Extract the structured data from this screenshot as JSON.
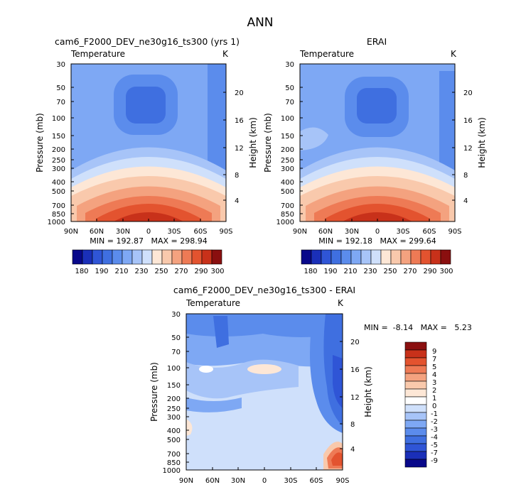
{
  "page_title": "ANN",
  "panels": [
    {
      "title": "cam6_F2000_DEV_ne30g16_ts300 (yrs 1)",
      "field_label": "Temperature",
      "units": "K",
      "ylabel": "Pressure (mb)",
      "ylabel_right": "Height (km)",
      "stats_text": "MIN = 192.87   MAX = 298.94"
    },
    {
      "title": "ERAI",
      "field_label": "Temperature",
      "units": "K",
      "ylabel": "Pressure (mb)",
      "ylabel_right": "Height (km)",
      "stats_text": "MIN = 192.18   MAX = 299.64"
    },
    {
      "title": "cam6_F2000_DEV_ne30g16_ts300 - ERAI",
      "field_label": "Temperature",
      "units": "K",
      "ylabel": "Pressure (mb)",
      "ylabel_right": "Height (km)",
      "stats_text": "MIN =  -8.14   MAX =   5.23"
    }
  ],
  "chart_data": [
    {
      "type": "heatmap",
      "title": "cam6_F2000_DEV_ne30g16_ts300 (yrs 1)",
      "x_ticks": [
        "90N",
        "60N",
        "30N",
        "0",
        "30S",
        "60S",
        "90S"
      ],
      "y_ticks": [
        "30",
        "50",
        "70",
        "100",
        "150",
        "200",
        "250",
        "300",
        "400",
        "500",
        "700",
        "850",
        "1000"
      ],
      "y_right_ticks": [
        "20",
        "16",
        "12",
        "8",
        "4"
      ],
      "min": 192.87,
      "max": 298.94,
      "colorbar_labels": [
        "180",
        "190",
        "210",
        "230",
        "250",
        "270",
        "290",
        "300"
      ]
    },
    {
      "type": "heatmap",
      "title": "ERAI",
      "x_ticks": [
        "90N",
        "60N",
        "30N",
        "0",
        "30S",
        "60S",
        "90S"
      ],
      "y_ticks": [
        "30",
        "50",
        "70",
        "100",
        "150",
        "200",
        "250",
        "300",
        "400",
        "500",
        "700",
        "850",
        "1000"
      ],
      "y_right_ticks": [
        "20",
        "16",
        "12",
        "8",
        "4"
      ],
      "min": 192.18,
      "max": 299.64,
      "colorbar_labels": [
        "180",
        "190",
        "210",
        "230",
        "250",
        "270",
        "290",
        "300"
      ]
    },
    {
      "type": "heatmap",
      "title": "cam6_F2000_DEV_ne30g16_ts300 - ERAI",
      "x_ticks": [
        "90N",
        "60N",
        "30N",
        "0",
        "30S",
        "60S",
        "90S"
      ],
      "y_ticks": [
        "30",
        "50",
        "70",
        "100",
        "150",
        "200",
        "250",
        "300",
        "400",
        "500",
        "700",
        "850",
        "1000"
      ],
      "y_right_ticks": [
        "20",
        "16",
        "12",
        "8",
        "4"
      ],
      "min": -8.14,
      "max": 5.23,
      "colorbar_labels": [
        "9",
        "7",
        "5",
        "4",
        "3",
        "2",
        "1",
        "0",
        "-1",
        "-2",
        "-3",
        "-4",
        "-5",
        "-7",
        "-9"
      ]
    }
  ],
  "palette_abs": [
    "#08088a",
    "#1a2fb8",
    "#2f55d6",
    "#3f6fe0",
    "#5b8cec",
    "#7ea8f4",
    "#a7c4f8",
    "#cfe0fb",
    "#fde7d6",
    "#f9c9ac",
    "#f4a27f",
    "#ee7a55",
    "#e3532f",
    "#c8311a",
    "#8a0f0f"
  ],
  "palette_diff": [
    "#8a0f0f",
    "#c8311a",
    "#e3532f",
    "#ee7a55",
    "#f4a27f",
    "#f9c9ac",
    "#fde7d6",
    "#ffffff",
    "#cfe0fb",
    "#a7c4f8",
    "#7ea8f4",
    "#5b8cec",
    "#3f6fe0",
    "#2f55d6",
    "#1a2fb8",
    "#08088a"
  ]
}
